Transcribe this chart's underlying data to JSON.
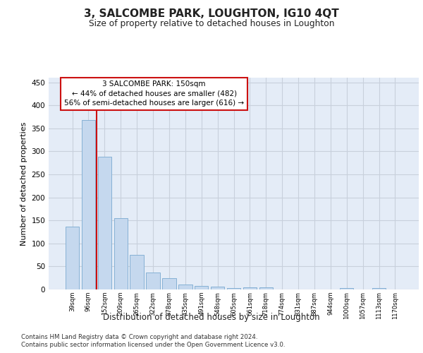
{
  "title": "3, SALCOMBE PARK, LOUGHTON, IG10 4QT",
  "subtitle": "Size of property relative to detached houses in Loughton",
  "xlabel": "Distribution of detached houses by size in Loughton",
  "ylabel": "Number of detached properties",
  "bar_color": "#c5d8ee",
  "bar_edge_color": "#7aaad0",
  "axes_bg_color": "#e4ecf7",
  "background_color": "#ffffff",
  "grid_color": "#c8d0dc",
  "red_color": "#cc1111",
  "annotation_text_line1": "3 SALCOMBE PARK: 150sqm",
  "annotation_text_line2": "← 44% of detached houses are smaller (482)",
  "annotation_text_line3": "56% of semi-detached houses are larger (616) →",
  "categories": [
    "39sqm",
    "96sqm",
    "152sqm",
    "209sqm",
    "265sqm",
    "322sqm",
    "378sqm",
    "435sqm",
    "491sqm",
    "548sqm",
    "605sqm",
    "661sqm",
    "718sqm",
    "774sqm",
    "831sqm",
    "887sqm",
    "944sqm",
    "1000sqm",
    "1057sqm",
    "1113sqm",
    "1170sqm"
  ],
  "values": [
    136,
    368,
    289,
    155,
    75,
    37,
    25,
    10,
    8,
    6,
    3,
    4,
    4,
    0,
    0,
    0,
    0,
    3,
    0,
    3,
    0
  ],
  "ylim": [
    0,
    460
  ],
  "yticks": [
    0,
    50,
    100,
    150,
    200,
    250,
    300,
    350,
    400,
    450
  ],
  "red_line_x": 1.5,
  "footnote1": "Contains HM Land Registry data © Crown copyright and database right 2024.",
  "footnote2": "Contains public sector information licensed under the Open Government Licence v3.0."
}
